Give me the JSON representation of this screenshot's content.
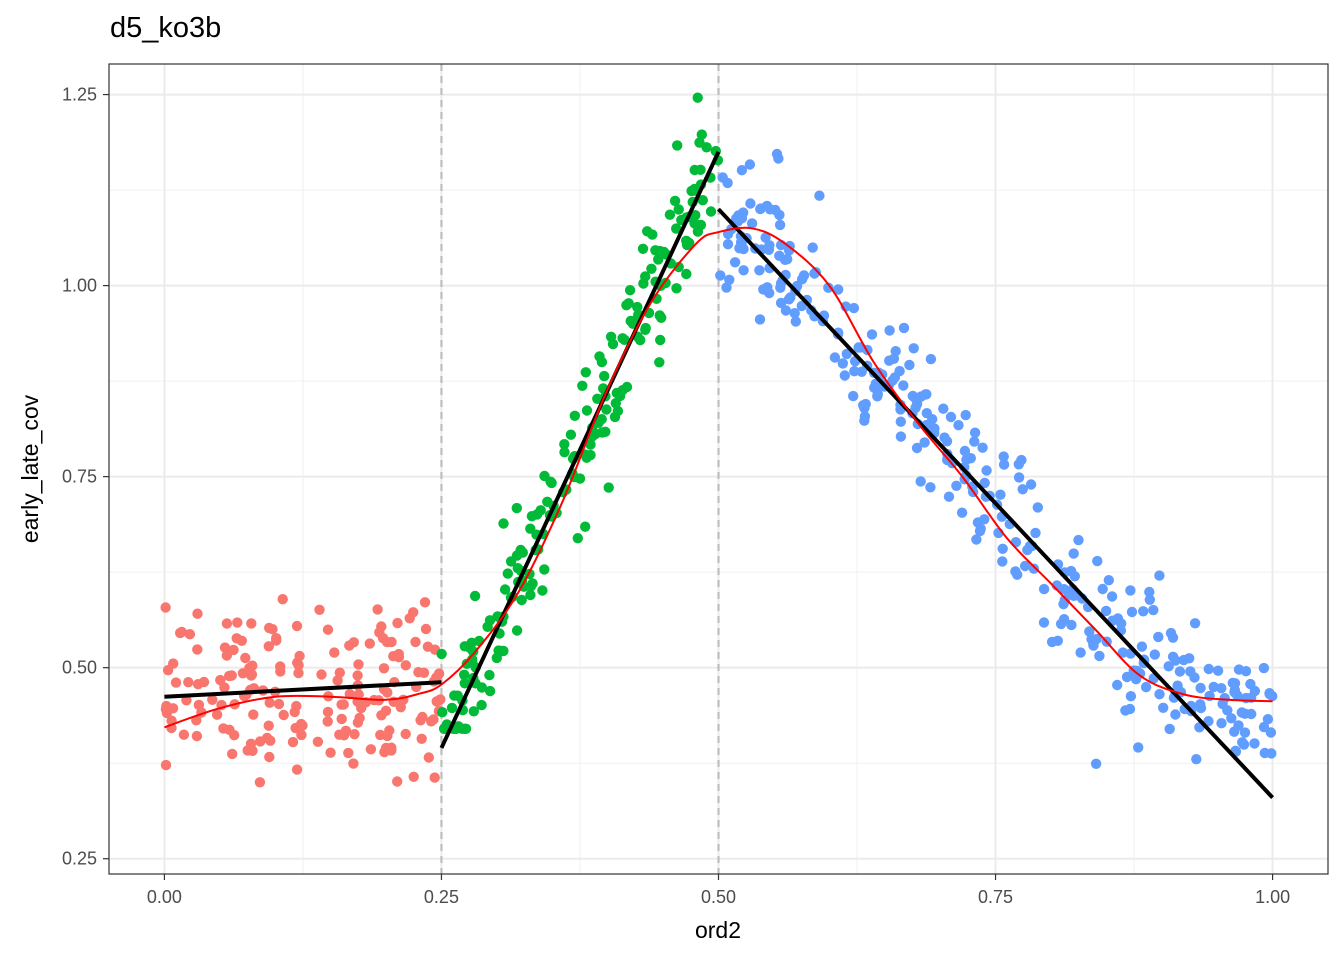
{
  "chart_data": {
    "type": "scatter",
    "title": "d5_ko3b",
    "xlabel": "ord2",
    "ylabel": "early_late_cov",
    "xlim": [
      -0.05,
      1.05
    ],
    "ylim": [
      0.23,
      1.29
    ],
    "x_ticks": [
      0.0,
      0.25,
      0.5,
      0.75,
      1.0
    ],
    "x_tick_labels": [
      "0.00",
      "0.25",
      "0.50",
      "0.75",
      "1.00"
    ],
    "y_ticks": [
      0.25,
      0.5,
      0.75,
      1.0,
      1.25
    ],
    "y_tick_labels": [
      "0.25",
      "0.50",
      "0.75",
      "1.00",
      "1.25"
    ],
    "grid": true,
    "legend": "none",
    "breakpoints": [
      0.25,
      0.5
    ],
    "colors": {
      "segment_1": "#F8766D",
      "segment_2": "#00BA38",
      "segment_3": "#619CFF",
      "fit_lines": "#000000",
      "smooth": "#FF0000",
      "breakpoint_lines": "#BEBEBE"
    },
    "series": [
      {
        "segment": 1,
        "x_range": [
          0.0,
          0.25
        ],
        "n_points": 180,
        "trend": {
          "x": [
            0.0,
            0.25
          ],
          "y": [
            0.462,
            0.481
          ]
        },
        "noise_sd": 0.055,
        "y_min": 0.35,
        "y_max": 0.615
      },
      {
        "segment": 2,
        "x_range": [
          0.25,
          0.5
        ],
        "n_points": 200,
        "trend": {
          "x": [
            0.25,
            0.5
          ],
          "y": [
            0.395,
            1.175
          ]
        },
        "noise_sd": 0.045,
        "y_min": 0.42,
        "y_max": 1.265
      },
      {
        "segment": 3,
        "x_range": [
          0.5,
          1.0
        ],
        "n_points": 340,
        "trend": {
          "x": [
            0.5,
            1.0
          ],
          "y": [
            1.1,
            0.33
          ]
        },
        "noise_sd": 0.05,
        "y_min": 0.275,
        "y_max": 1.252
      }
    ],
    "fit_lines": [
      {
        "x": [
          0.0,
          0.25
        ],
        "y": [
          0.462,
          0.481
        ]
      },
      {
        "x": [
          0.25,
          0.5
        ],
        "y": [
          0.395,
          1.175
        ]
      },
      {
        "x": [
          0.5,
          1.0
        ],
        "y": [
          1.1,
          0.33
        ]
      }
    ],
    "smooth_curve": {
      "x": [
        0.0,
        0.05,
        0.1,
        0.15,
        0.2,
        0.23,
        0.25,
        0.28,
        0.32,
        0.36,
        0.4,
        0.44,
        0.48,
        0.5,
        0.53,
        0.56,
        0.6,
        0.64,
        0.68,
        0.72,
        0.76,
        0.8,
        0.84,
        0.88,
        0.92,
        0.96,
        1.0
      ],
      "y": [
        0.422,
        0.447,
        0.462,
        0.462,
        0.458,
        0.466,
        0.478,
        0.52,
        0.6,
        0.72,
        0.865,
        0.98,
        1.055,
        1.07,
        1.075,
        1.055,
        1.0,
        0.9,
        0.82,
        0.75,
        0.67,
        0.61,
        0.55,
        0.49,
        0.465,
        0.458,
        0.456
      ]
    }
  }
}
